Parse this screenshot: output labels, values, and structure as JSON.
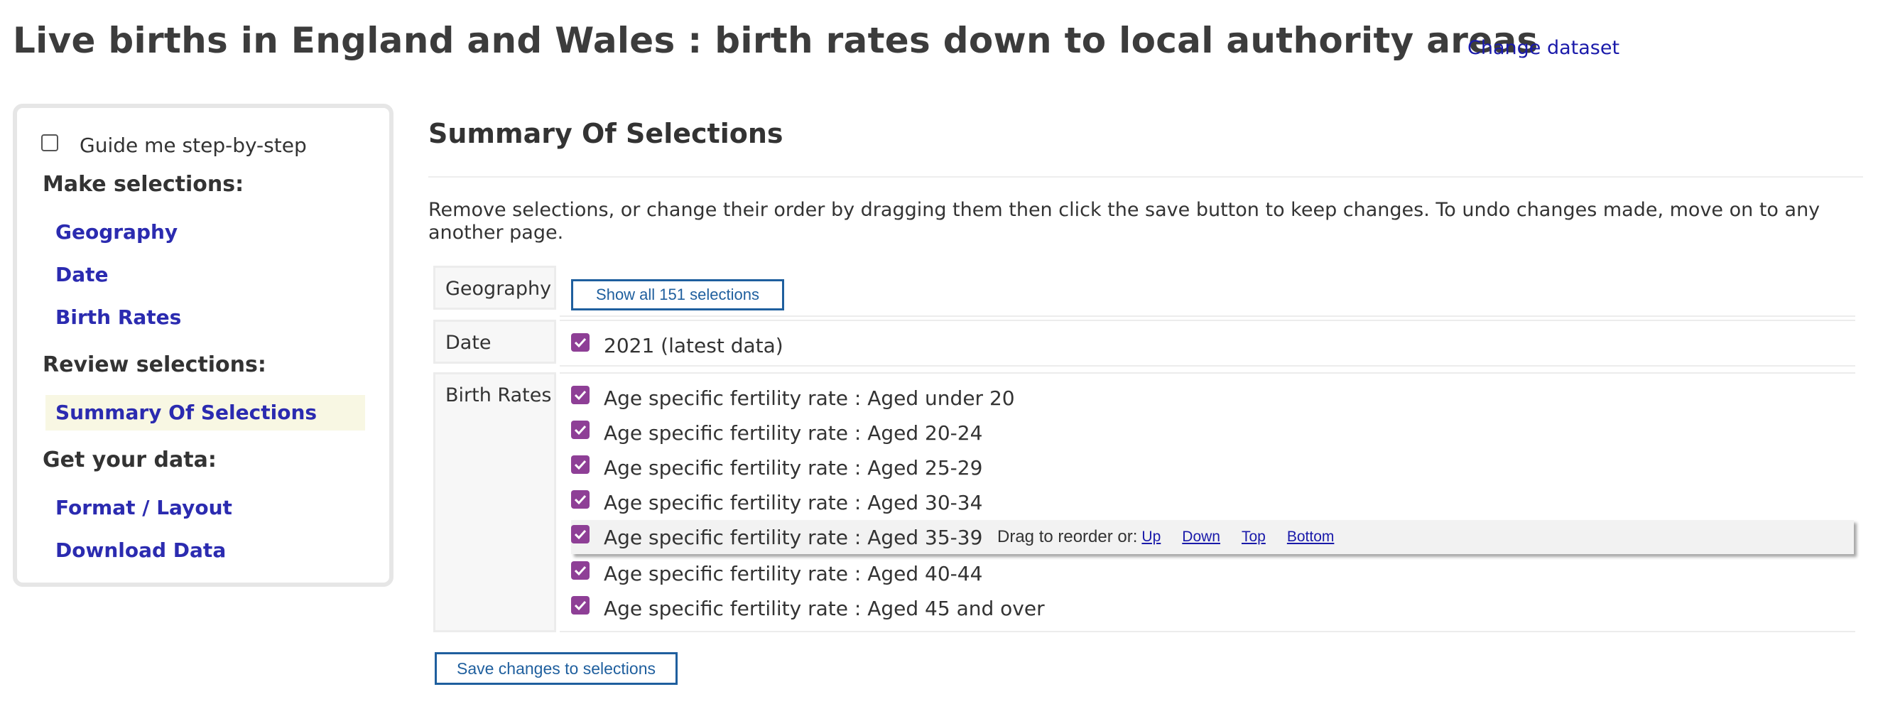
{
  "header": {
    "title": "Live births in England and Wales : birth rates down to local authority areas",
    "change_dataset": "Change dataset"
  },
  "sidebar": {
    "guide_label": "Guide me step-by-step",
    "make_selections_heading": "Make selections:",
    "make_items": [
      "Geography",
      "Date",
      "Birth Rates"
    ],
    "review_heading": "Review selections:",
    "review_items": [
      "Summary Of Selections"
    ],
    "get_data_heading": "Get your data:",
    "data_items": [
      "Format / Layout",
      "Download Data"
    ]
  },
  "main": {
    "title": "Summary Of Selections",
    "instructions": "Remove selections, or change their order by dragging them then click the save button to keep changes. To undo changes made, move on to any another page.",
    "rows": {
      "geography": {
        "label": "Geography",
        "button": "Show all 151 selections"
      },
      "date": {
        "label": "Date",
        "items": [
          "2021 (latest data)"
        ]
      },
      "birth_rates": {
        "label": "Birth Rates",
        "items": [
          "Age specific fertility rate : Aged under 20",
          "Age specific fertility rate : Aged 20-24",
          "Age specific fertility rate : Aged 25-29",
          "Age specific fertility rate : Aged 30-34",
          "Age specific fertility rate : Aged 35-39",
          "Age specific fertility rate : Aged 40-44",
          "Age specific fertility rate : Aged 45 and over"
        ]
      }
    },
    "drag": {
      "text": "Drag to reorder or:",
      "up": "Up",
      "down": "Down",
      "top": "Top",
      "bottom": "Bottom"
    },
    "save_button": "Save changes to selections"
  },
  "colors": {
    "link": "#1a1aaa",
    "nav_link": "#2b2bb0",
    "button_border": "#1f5f9e",
    "checkbox": "#8e3f96",
    "active_nav_bg": "#f8f7e3"
  }
}
